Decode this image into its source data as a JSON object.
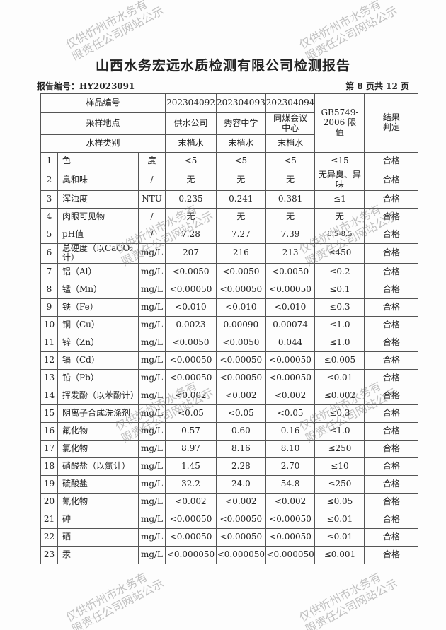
{
  "title": "山西水务宏远水质检测有限公司检测报告",
  "report_no": "报告编号：HY2023091",
  "page": "第 8 页共 12 页",
  "watermark": [
    "仅供忻州市水务有",
    "限责任公司网站公示"
  ],
  "header": {
    "sample_no_label": "样品编号",
    "site_label": "采样地点",
    "type_label": "水样类别",
    "standard": "GB5749-2006 限值",
    "result": "结果判定",
    "samples": [
      {
        "no": "202304092",
        "site": "供水公司",
        "type": "末梢水"
      },
      {
        "no": "202304093",
        "site": "秀容中学",
        "type": "末梢水"
      },
      {
        "no": "202304094",
        "site": "同煤会议中心",
        "type": "末梢水"
      }
    ]
  },
  "rows": [
    [
      "1",
      "色",
      "度",
      "<5",
      "<5",
      "<5",
      "≤15",
      "合格"
    ],
    [
      "2",
      "臭和味",
      "/",
      "无",
      "无",
      "无",
      "无异臭、异味",
      "合格"
    ],
    [
      "3",
      "浑浊度",
      "NTU",
      "0.235",
      "0.241",
      "0.381",
      "≤1",
      "合格"
    ],
    [
      "4",
      "肉眼可见物",
      "/",
      "无",
      "无",
      "无",
      "无",
      "合格"
    ],
    [
      "5",
      "pH值",
      "/",
      "7.28",
      "7.27",
      "7.39",
      "6.5-8.5",
      "合格"
    ],
    [
      "6",
      "总硬度（以CaCO₃计）",
      "mg/L",
      "207",
      "216",
      "213",
      "≤450",
      "合格"
    ],
    [
      "7",
      "铝（Al）",
      "mg/L",
      "<0.0050",
      "<0.0050",
      "<0.0050",
      "≤0.2",
      "合格"
    ],
    [
      "8",
      "锰（Mn）",
      "mg/L",
      "<0.00050",
      "<0.00050",
      "<0.00050",
      "≤0.1",
      "合格"
    ],
    [
      "9",
      "铁（Fe）",
      "mg/L",
      "<0.010",
      "<0.010",
      "<0.010",
      "≤0.3",
      "合格"
    ],
    [
      "10",
      "铜（Cu）",
      "mg/L",
      "0.0023",
      "0.00090",
      "0.00074",
      "≤1.0",
      "合格"
    ],
    [
      "11",
      "锌（Zn）",
      "mg/L",
      "<0.0050",
      "<0.0050",
      "0.044",
      "≤1.0",
      "合格"
    ],
    [
      "12",
      "镉（Cd）",
      "mg/L",
      "<0.00050",
      "<0.00050",
      "<0.00050",
      "≤0.005",
      "合格"
    ],
    [
      "13",
      "铅（Pb）",
      "mg/L",
      "<0.00050",
      "<0.00050",
      "<0.00050",
      "≤0.01",
      "合格"
    ],
    [
      "14",
      "挥发酚（以苯酚计）",
      "mg/L",
      "<0.002",
      "<0.002",
      "<0.002",
      "≤0.002",
      "合格"
    ],
    [
      "15",
      "阴离子合成洗涤剂",
      "mg/L",
      "<0.05",
      "<0.05",
      "<0.05",
      "≤0.3",
      "合格"
    ],
    [
      "16",
      "氟化物",
      "mg/L",
      "0.57",
      "0.60",
      "0.16",
      "≤1.0",
      "合格"
    ],
    [
      "17",
      "氯化物",
      "mg/L",
      "8.97",
      "8.16",
      "8.10",
      "≤250",
      "合格"
    ],
    [
      "18",
      "硝酸盐（以氮计）",
      "mg/L",
      "1.45",
      "2.28",
      "2.70",
      "≤10",
      "合格"
    ],
    [
      "19",
      "硫酸盐",
      "mg/L",
      "32.2",
      "24.0",
      "54.8",
      "≤250",
      "合格"
    ],
    [
      "20",
      "氰化物",
      "mg/L",
      "<0.002",
      "<0.002",
      "<0.002",
      "≤0.05",
      "合格"
    ],
    [
      "21",
      "砷",
      "mg/L",
      "<0.00050",
      "<0.00050",
      "<0.00050",
      "≤0.01",
      "合格"
    ],
    [
      "22",
      "硒",
      "mg/L",
      "<0.00050",
      "<0.00050",
      "<0.00050",
      "≤0.01",
      "合格"
    ],
    [
      "23",
      "汞",
      "mg/L",
      "<0.000050",
      "<0.000050",
      "<0.000050",
      "≤0.001",
      "合格"
    ]
  ]
}
